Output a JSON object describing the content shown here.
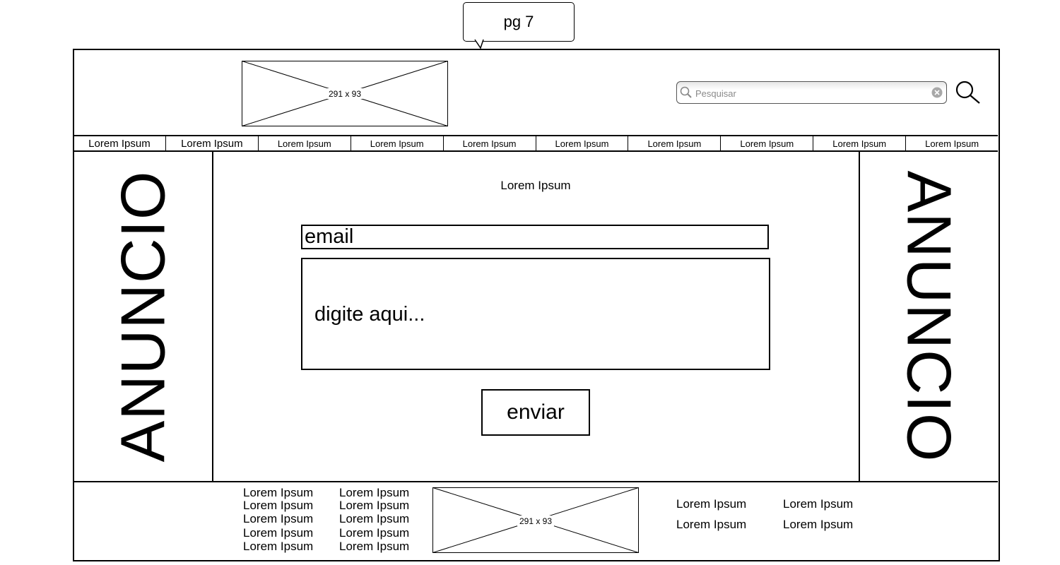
{
  "annotation": {
    "page_label": "pg 7"
  },
  "header": {
    "logo": {
      "size_label": "291 x 93"
    },
    "search": {
      "placeholder": "Pesquisar"
    },
    "icons": {
      "search_field_icon": "magnifier-icon",
      "clear_icon": "clear-x-icon",
      "search_button_icon": "magnifier-icon"
    }
  },
  "nav": {
    "items": [
      {
        "label": "Lorem Ipsum"
      },
      {
        "label": "Lorem Ipsum"
      },
      {
        "label": "Lorem Ipsum"
      },
      {
        "label": "Lorem Ipsum"
      },
      {
        "label": "Lorem Ipsum"
      },
      {
        "label": "Lorem Ipsum"
      },
      {
        "label": "Lorem Ipsum"
      },
      {
        "label": "Lorem Ipsum"
      },
      {
        "label": "Lorem Ipsum"
      },
      {
        "label": "Lorem Ipsum"
      }
    ]
  },
  "ads": {
    "left": "ANUNCIO",
    "right": "ANUNCIO"
  },
  "main": {
    "title": "Lorem Ipsum",
    "email_placeholder": "email",
    "message_placeholder": "digite aqui...",
    "send_label": "enviar"
  },
  "footer": {
    "col1": [
      "Lorem Ipsum",
      "Lorem Ipsum",
      "Lorem Ipsum",
      "Lorem Ipsum",
      "Lorem Ipsum"
    ],
    "col2": [
      "Lorem Ipsum",
      "Lorem Ipsum",
      "Lorem Ipsum",
      "Lorem Ipsum",
      "Lorem Ipsum"
    ],
    "image": {
      "size_label": "291 x 93"
    },
    "links": [
      "Lorem Ipsum",
      "Lorem Ipsum",
      "Lorem Ipsum",
      "Lorem Ipsum"
    ]
  }
}
